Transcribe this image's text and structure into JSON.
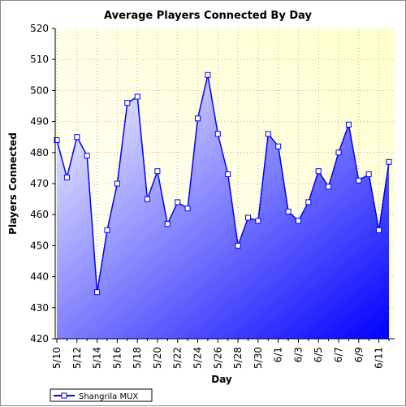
{
  "chart_data": {
    "type": "area",
    "title": "Average Players Connected By Day",
    "xlabel": "Day",
    "ylabel": "Players Connected",
    "ylim": [
      420,
      520
    ],
    "yticks": [
      420,
      430,
      440,
      450,
      460,
      470,
      480,
      490,
      500,
      510,
      520
    ],
    "x": [
      "5/10",
      "5/11",
      "5/12",
      "5/13",
      "5/14",
      "5/15",
      "5/16",
      "5/17",
      "5/18",
      "5/19",
      "5/20",
      "5/21",
      "5/22",
      "5/23",
      "5/24",
      "5/25",
      "5/26",
      "5/27",
      "5/28",
      "5/29",
      "5/30",
      "5/31",
      "6/1",
      "6/2",
      "6/3",
      "6/4",
      "6/5",
      "6/6",
      "6/7",
      "6/8",
      "6/9",
      "6/10",
      "6/11",
      "6/12"
    ],
    "xtick_labels": [
      "5/10",
      "5/12",
      "5/14",
      "5/16",
      "5/18",
      "5/20",
      "5/22",
      "5/24",
      "5/26",
      "5/28",
      "5/30",
      "6/1",
      "6/3",
      "6/5",
      "6/7",
      "6/9",
      "6/11"
    ],
    "series": [
      {
        "name": "Shangrila MUX",
        "values": [
          484,
          472,
          485,
          479,
          435,
          455,
          470,
          496,
          498,
          465,
          474,
          457,
          464,
          462,
          491,
          505,
          486,
          473,
          450,
          459,
          458,
          486,
          482,
          461,
          458,
          464,
          474,
          469,
          480,
          489,
          471,
          473,
          455,
          477
        ],
        "color": "#0000ff"
      }
    ],
    "grid": true,
    "legend_position": "bottom-left",
    "plot_background": [
      "#ffffff",
      "#ffffcc"
    ],
    "fill_gradient": [
      "#ffffff",
      "#0000ff"
    ]
  }
}
